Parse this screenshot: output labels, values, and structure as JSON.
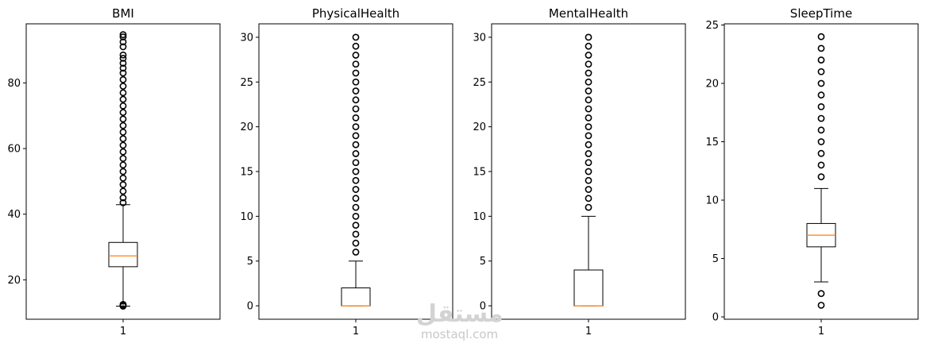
{
  "chart_data": [
    {
      "type": "boxplot",
      "title": "BMI",
      "categories": [
        "1"
      ],
      "ylim": [
        8,
        98
      ],
      "yticks": [
        20,
        40,
        60,
        80
      ],
      "box": {
        "whisker_low": 12.0,
        "q1": 24.0,
        "median": 27.3,
        "q3": 31.4,
        "whisker_high": 42.9
      },
      "outliers": [
        12.0,
        12.2,
        12.5,
        43.5,
        45,
        47,
        49,
        51,
        53,
        55,
        57,
        59,
        61,
        63,
        65,
        67,
        69,
        71,
        73,
        75,
        77,
        79,
        81,
        83,
        84.5,
        86,
        87.5,
        88.5,
        91,
        92.5,
        94,
        94.7
      ]
    },
    {
      "type": "boxplot",
      "title": "PhysicalHealth",
      "categories": [
        "1"
      ],
      "ylim": [
        -1.5,
        31.5
      ],
      "yticks": [
        0,
        5,
        10,
        15,
        20,
        25,
        30
      ],
      "box": {
        "whisker_low": 0,
        "q1": 0,
        "median": 0,
        "q3": 2,
        "whisker_high": 5
      },
      "outliers": [
        6,
        7,
        8,
        9,
        10,
        11,
        12,
        13,
        14,
        15,
        16,
        17,
        18,
        19,
        20,
        21,
        22,
        23,
        24,
        25,
        26,
        27,
        28,
        29,
        30
      ]
    },
    {
      "type": "boxplot",
      "title": "MentalHealth",
      "categories": [
        "1"
      ],
      "ylim": [
        -1.5,
        31.5
      ],
      "yticks": [
        0,
        5,
        10,
        15,
        20,
        25,
        30
      ],
      "box": {
        "whisker_low": 0,
        "q1": 0,
        "median": 0,
        "q3": 4,
        "whisker_high": 10
      },
      "outliers": [
        11,
        12,
        13,
        14,
        15,
        16,
        17,
        18,
        19,
        20,
        21,
        22,
        23,
        24,
        25,
        26,
        27,
        28,
        29,
        30
      ]
    },
    {
      "type": "boxplot",
      "title": "SleepTime",
      "categories": [
        "1"
      ],
      "ylim": [
        -0.2,
        25.1
      ],
      "yticks": [
        0,
        5,
        10,
        15,
        20,
        25
      ],
      "box": {
        "whisker_low": 3,
        "q1": 6,
        "median": 7,
        "q3": 8,
        "whisker_high": 11
      },
      "outliers": [
        1,
        2,
        12,
        13,
        14,
        15,
        16,
        17,
        18,
        19,
        20,
        21,
        22,
        23,
        24
      ]
    }
  ],
  "colors": {
    "median": "#ff7f0e",
    "box": "#000000"
  },
  "watermark": {
    "logo": "مستقل",
    "url": "mostaql.com"
  }
}
